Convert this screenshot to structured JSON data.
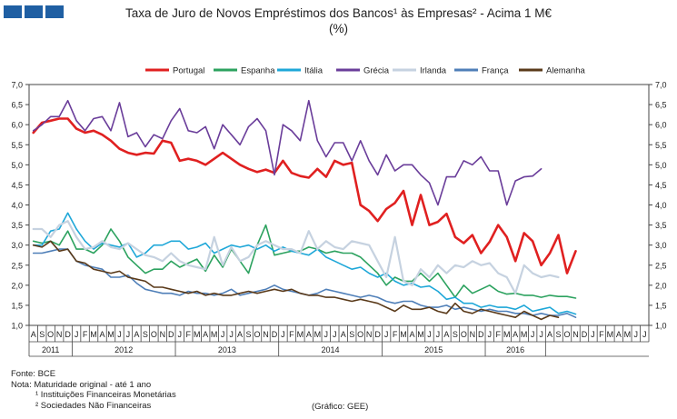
{
  "header": {
    "title": "Taxa de Juro de Novos Empréstimos dos Bancos¹ às Empresas² - Acima 1 M€",
    "subtitle": "(%)"
  },
  "notes": {
    "source": "Fonte: BCE",
    "note": "Nota: Maturidade original - até 1 ano",
    "footnote1": "¹ Instituições Financeiras Monetárias",
    "footnote2": "² Sociedades Não Financeiras",
    "credit": "(Gráfico: GEE)"
  },
  "logo": {
    "color": "#1f5fa3"
  },
  "chart_data": {
    "type": "line",
    "title": "Taxa de Juro de Novos Empréstimos dos Bancos¹ às Empresas² - Acima 1 M€",
    "ylabel": "(%)",
    "xlabel": "",
    "ylim": [
      1.0,
      7.0
    ],
    "yticks": [
      "1,0",
      "1,5",
      "2,0",
      "2,5",
      "3,0",
      "3,5",
      "4,0",
      "4,5",
      "5,0",
      "5,5",
      "6,0",
      "6,5",
      "7,0"
    ],
    "grid": false,
    "legend_position": "top",
    "x_start": "2011-08",
    "month_letters": [
      "A",
      "S",
      "O",
      "N",
      "D",
      "J",
      "F",
      "M",
      "A",
      "M",
      "J",
      "J",
      "A",
      "S",
      "O",
      "N",
      "D",
      "J",
      "F",
      "M",
      "A",
      "M",
      "J",
      "J",
      "A",
      "S",
      "O",
      "N",
      "D",
      "J",
      "F",
      "M",
      "A",
      "M",
      "J",
      "J",
      "A",
      "S",
      "O",
      "N",
      "D",
      "J",
      "F",
      "M",
      "A",
      "M",
      "J",
      "J",
      "A",
      "S",
      "O",
      "N",
      "D",
      "J",
      "F",
      "M",
      "A",
      "M",
      "J",
      "J",
      "A",
      "S",
      "O",
      "N",
      "D",
      "J",
      "F",
      "M",
      "A",
      "M",
      "J",
      "J"
    ],
    "years": [
      {
        "label": "2011",
        "start": 0,
        "end": 4
      },
      {
        "label": "2012",
        "start": 5,
        "end": 16
      },
      {
        "label": "2013",
        "start": 17,
        "end": 28
      },
      {
        "label": "2014",
        "start": 29,
        "end": 40
      },
      {
        "label": "2015",
        "start": 41,
        "end": 52
      },
      {
        "label": "2016",
        "start": 53,
        "end": 59
      }
    ],
    "series": [
      {
        "name": "Portugal",
        "color": "#e02020",
        "width": 2.6,
        "values": [
          5.8,
          6.05,
          6.1,
          6.15,
          6.15,
          5.9,
          5.8,
          5.85,
          5.75,
          5.6,
          5.4,
          5.3,
          5.25,
          5.3,
          5.28,
          5.6,
          5.55,
          5.1,
          5.15,
          5.1,
          5.0,
          5.15,
          5.3,
          5.15,
          5.0,
          4.9,
          4.82,
          4.88,
          4.8,
          5.1,
          4.8,
          4.72,
          4.68,
          4.9,
          4.7,
          5.1,
          5.0,
          5.05,
          4.0,
          3.85,
          3.6,
          3.9,
          4.05,
          4.35,
          3.5,
          4.25,
          3.5,
          3.58,
          3.78,
          3.2,
          3.05,
          3.25,
          2.8,
          3.08,
          3.5,
          3.2,
          2.6,
          3.3,
          3.1,
          2.5,
          2.8,
          3.25,
          2.3,
          2.85
        ]
      },
      {
        "name": "Espanha",
        "color": "#2ca25f",
        "width": 1.6,
        "values": [
          3.1,
          3.05,
          3.1,
          3.0,
          3.35,
          2.9,
          2.9,
          2.8,
          3.0,
          3.4,
          3.1,
          2.7,
          2.5,
          2.3,
          2.4,
          2.4,
          2.6,
          2.45,
          2.55,
          2.65,
          2.35,
          2.75,
          2.45,
          2.9,
          2.6,
          2.3,
          3.0,
          3.5,
          2.75,
          2.8,
          2.85,
          2.85,
          2.95,
          2.9,
          2.8,
          2.85,
          2.8,
          2.8,
          2.7,
          2.5,
          2.3,
          2.0,
          2.2,
          2.1,
          2.1,
          2.3,
          2.1,
          2.3,
          2.0,
          1.7,
          2.0,
          1.8,
          1.9,
          2.0,
          1.85,
          1.78,
          1.8,
          1.75,
          1.75,
          1.7,
          1.75,
          1.72,
          1.72,
          1.68
        ]
      },
      {
        "name": "Itália",
        "color": "#1ea7d8",
        "width": 1.6,
        "values": [
          3.0,
          3.0,
          3.35,
          3.4,
          3.8,
          3.4,
          3.1,
          2.9,
          3.05,
          3.0,
          2.95,
          3.05,
          2.7,
          2.8,
          3.0,
          3.0,
          3.1,
          3.1,
          2.9,
          2.95,
          3.05,
          2.8,
          2.9,
          3.0,
          2.95,
          3.0,
          2.9,
          3.0,
          2.85,
          2.95,
          2.85,
          2.8,
          2.75,
          2.9,
          2.7,
          2.6,
          2.5,
          2.4,
          2.45,
          2.3,
          2.2,
          2.3,
          2.1,
          2.0,
          2.05,
          1.95,
          1.98,
          1.85,
          1.65,
          1.7,
          1.55,
          1.55,
          1.45,
          1.5,
          1.45,
          1.45,
          1.4,
          1.5,
          1.35,
          1.4,
          1.45,
          1.3,
          1.35,
          1.28
        ]
      },
      {
        "name": "Grécia",
        "color": "#6a3d9a",
        "width": 1.6,
        "values": [
          5.85,
          6.0,
          6.2,
          6.2,
          6.6,
          6.1,
          5.85,
          6.15,
          6.2,
          5.85,
          6.55,
          5.7,
          5.8,
          5.45,
          5.75,
          5.65,
          6.1,
          6.4,
          5.85,
          5.8,
          5.95,
          5.4,
          6.0,
          5.75,
          5.5,
          5.95,
          6.15,
          5.85,
          4.75,
          6.0,
          5.85,
          5.6,
          6.6,
          5.6,
          5.2,
          5.55,
          5.55,
          5.1,
          5.6,
          5.1,
          4.75,
          5.25,
          4.85,
          5.0,
          5.0,
          4.75,
          4.55,
          4.0,
          4.7,
          4.7,
          5.1,
          5.0,
          5.2,
          4.85,
          4.85,
          4.0,
          4.6,
          4.7,
          4.72,
          4.9
        ]
      },
      {
        "name": "Irlanda",
        "color": "#c6d2e0",
        "width": 2.2,
        "values": [
          3.4,
          3.4,
          3.2,
          3.5,
          3.6,
          3.2,
          2.9,
          2.95,
          3.1,
          2.95,
          2.9,
          3.05,
          2.9,
          2.75,
          2.7,
          2.6,
          2.8,
          2.6,
          2.5,
          2.45,
          2.4,
          3.2,
          2.5,
          2.95,
          2.6,
          2.7,
          3.0,
          3.1,
          3.0,
          2.9,
          2.9,
          2.8,
          3.35,
          2.9,
          3.1,
          2.95,
          2.9,
          3.1,
          3.05,
          3.0,
          2.6,
          2.2,
          3.2,
          2.1,
          2.0,
          2.4,
          2.2,
          2.5,
          2.3,
          2.5,
          2.45,
          2.6,
          2.5,
          2.55,
          2.3,
          2.2,
          1.8,
          2.5,
          2.3,
          2.2,
          2.25,
          2.2
        ]
      },
      {
        "name": "França",
        "color": "#4f7fb8",
        "width": 1.6,
        "values": [
          2.8,
          2.8,
          2.85,
          2.9,
          2.9,
          2.6,
          2.5,
          2.45,
          2.4,
          2.2,
          2.2,
          2.25,
          2.05,
          1.9,
          1.85,
          1.8,
          1.8,
          1.75,
          1.85,
          1.8,
          1.8,
          1.75,
          1.8,
          1.9,
          1.75,
          1.8,
          1.85,
          1.9,
          2.0,
          1.9,
          1.85,
          1.8,
          1.75,
          1.8,
          1.9,
          1.85,
          1.8,
          1.75,
          1.7,
          1.75,
          1.7,
          1.6,
          1.55,
          1.6,
          1.6,
          1.5,
          1.45,
          1.45,
          1.5,
          1.4,
          1.45,
          1.4,
          1.35,
          1.4,
          1.35,
          1.35,
          1.3,
          1.3,
          1.25,
          1.3,
          1.25,
          1.25,
          1.3,
          1.2
        ]
      },
      {
        "name": "Alemanha",
        "color": "#5a3a1a",
        "width": 1.6,
        "values": [
          3.0,
          2.95,
          3.1,
          2.85,
          2.9,
          2.6,
          2.55,
          2.4,
          2.35,
          2.3,
          2.35,
          2.2,
          2.15,
          2.1,
          1.95,
          1.95,
          1.9,
          1.85,
          1.8,
          1.85,
          1.75,
          1.8,
          1.75,
          1.75,
          1.8,
          1.85,
          1.8,
          1.85,
          1.9,
          1.85,
          1.9,
          1.8,
          1.75,
          1.75,
          1.7,
          1.7,
          1.65,
          1.6,
          1.65,
          1.6,
          1.55,
          1.45,
          1.35,
          1.5,
          1.4,
          1.4,
          1.45,
          1.35,
          1.3,
          1.55,
          1.35,
          1.3,
          1.4,
          1.35,
          1.3,
          1.25,
          1.2,
          1.35,
          1.25,
          1.15,
          1.25,
          1.2
        ]
      }
    ]
  }
}
